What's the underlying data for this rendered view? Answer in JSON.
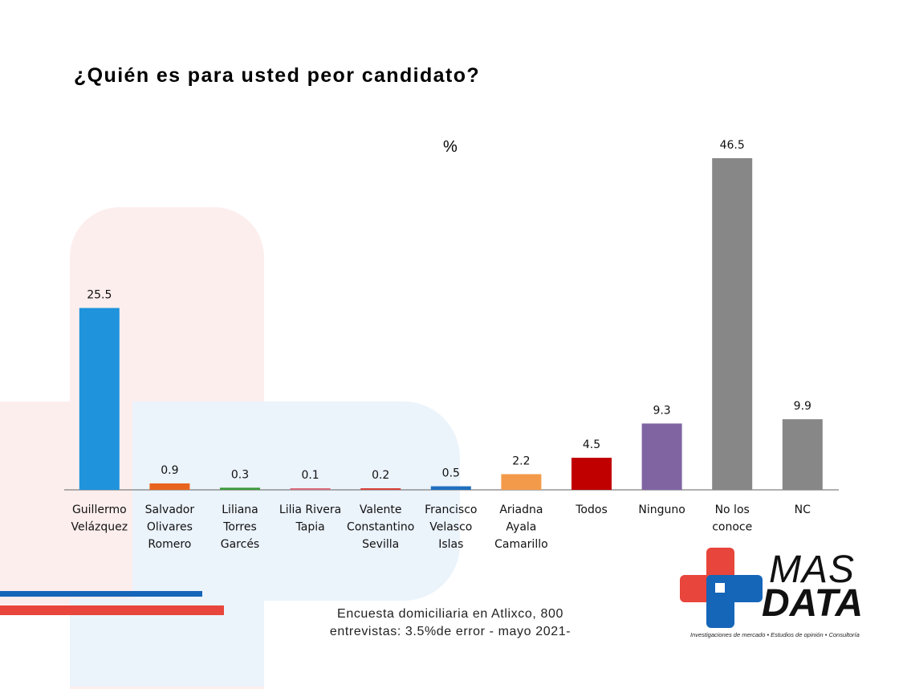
{
  "title": "¿Quién es para usted peor candidato?",
  "unit_label": "%",
  "footnote": {
    "line1": "Encuesta domiciliaria en Atlixco, 800",
    "line2": "entrevistas: 3.5%de error - mayo 2021-"
  },
  "logo": {
    "line1": "MAS",
    "line2": "DATA",
    "tagline": "Investigaciones de mercado • Estudios de opinión • Consultoría"
  },
  "colors": {
    "bg_pink": "#fdeeee",
    "bg_blue": "#ebf3fb",
    "stripe_blue": "#1565b8",
    "stripe_red": "#e8453c",
    "logo_red": "#e8453c",
    "logo_blue": "#1565b8"
  },
  "chart_data": {
    "type": "bar",
    "title": "¿Quién es para usted peor candidato?",
    "ylabel": "%",
    "xlabel": "",
    "ylim": [
      0,
      50
    ],
    "categories": [
      [
        "Guillermo",
        "Velázquez"
      ],
      [
        "Salvador",
        "Olivares",
        "Romero"
      ],
      [
        "Liliana",
        "Torres",
        "Garcés"
      ],
      [
        "Lilia Rivera",
        "Tapia"
      ],
      [
        "Valente",
        "Constantino",
        "Sevilla"
      ],
      [
        "Francisco",
        "Velasco",
        "Islas"
      ],
      [
        "Ariadna",
        "Ayala",
        "Camarillo"
      ],
      [
        "Todos"
      ],
      [
        "Ninguno"
      ],
      [
        "No los",
        "conoce"
      ],
      [
        "NC"
      ]
    ],
    "values": [
      25.5,
      0.9,
      0.3,
      0.1,
      0.2,
      0.5,
      2.2,
      4.5,
      9.3,
      46.5,
      9.9
    ],
    "value_labels": [
      "25.5",
      "0.9",
      "0.3",
      "0.1",
      "0.2",
      "0.5",
      "2.2",
      "4.5",
      "9.3",
      "46.5",
      "9.9"
    ],
    "bar_colors": [
      "#1f93dc",
      "#e8641e",
      "#3a9a3a",
      "#d96a7a",
      "#d8413a",
      "#1f6fbf",
      "#f39a4a",
      "#c00000",
      "#8064a2",
      "#878787",
      "#878787"
    ]
  }
}
